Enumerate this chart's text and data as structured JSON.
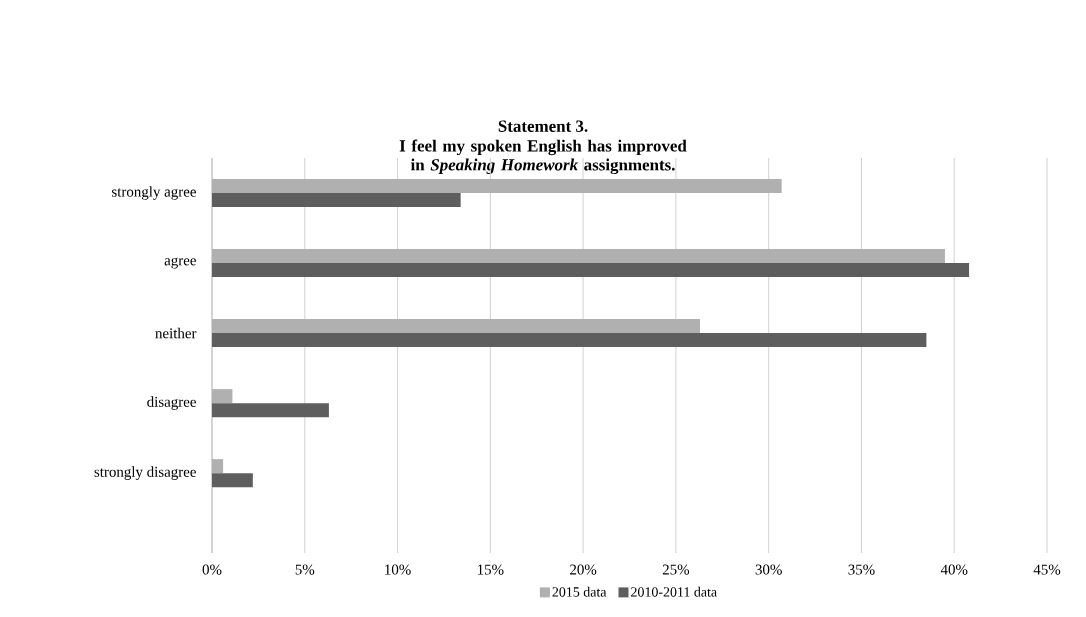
{
  "chart_data": {
    "type": "bar",
    "orientation": "horizontal",
    "title": "Statement 3.",
    "subtitle": "I feel my spoken English has improved in *Speaking Homework* assignments.",
    "categories": [
      "strongly agree",
      "agree",
      "neither",
      "disagree",
      "strongly disagree"
    ],
    "series": [
      {
        "name": "2015 data",
        "color": "#b0b0b0",
        "values": [
          30.7,
          39.5,
          26.3,
          1.1,
          0.6
        ]
      },
      {
        "name": "2010-2011 data",
        "color": "#5e5e5e",
        "values": [
          13.4,
          40.8,
          38.5,
          6.3,
          2.2
        ]
      }
    ],
    "xlim": [
      0,
      45
    ],
    "xticks": [
      {
        "value": 0,
        "label": "0%"
      },
      {
        "value": 5,
        "label": "5%"
      },
      {
        "value": 10,
        "label": "10%"
      },
      {
        "value": 15,
        "label": "15%"
      },
      {
        "value": 20,
        "label": "20%"
      },
      {
        "value": 25,
        "label": "25%"
      },
      {
        "value": 30,
        "label": "30%"
      },
      {
        "value": 35,
        "label": "35%"
      },
      {
        "value": 40,
        "label": "40%"
      },
      {
        "value": 45,
        "label": "45%"
      }
    ],
    "grid": "x",
    "legend": "bottom"
  }
}
